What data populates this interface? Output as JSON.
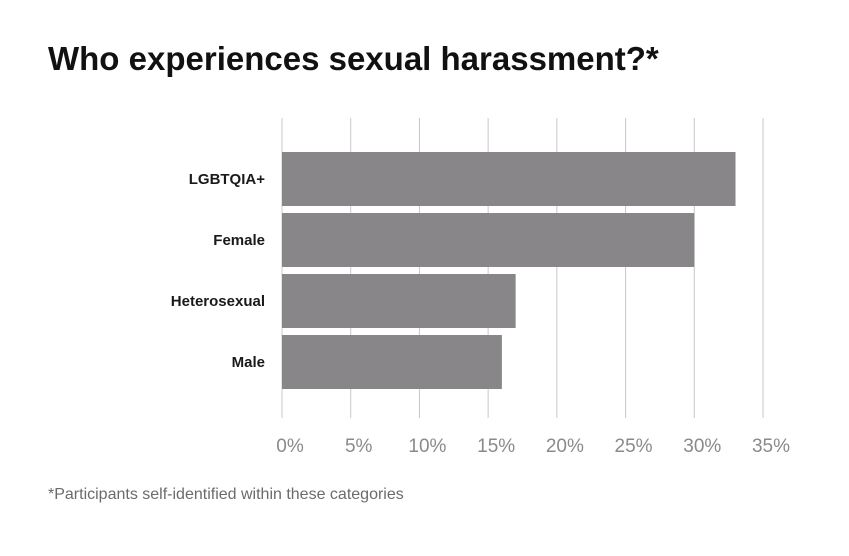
{
  "title": "Who experiences sexual harassment?*",
  "footnote": "*Participants self-identified within these categories",
  "colors": {
    "bar": "#888689",
    "grid": "#c8c8c8"
  },
  "chart_data": {
    "type": "bar",
    "orientation": "horizontal",
    "title": "Who experiences sexual harassment?*",
    "categories": [
      "LGBTQIA+",
      "Female",
      "Heterosexual",
      "Male"
    ],
    "values": [
      33,
      30,
      17,
      16
    ],
    "unit": "%",
    "xlim": [
      0,
      35
    ],
    "xticks": [
      "0%",
      "5%",
      "10%",
      "15%",
      "20%",
      "25%",
      "30%",
      "35%"
    ],
    "grid": "vertical",
    "legend": "none"
  }
}
